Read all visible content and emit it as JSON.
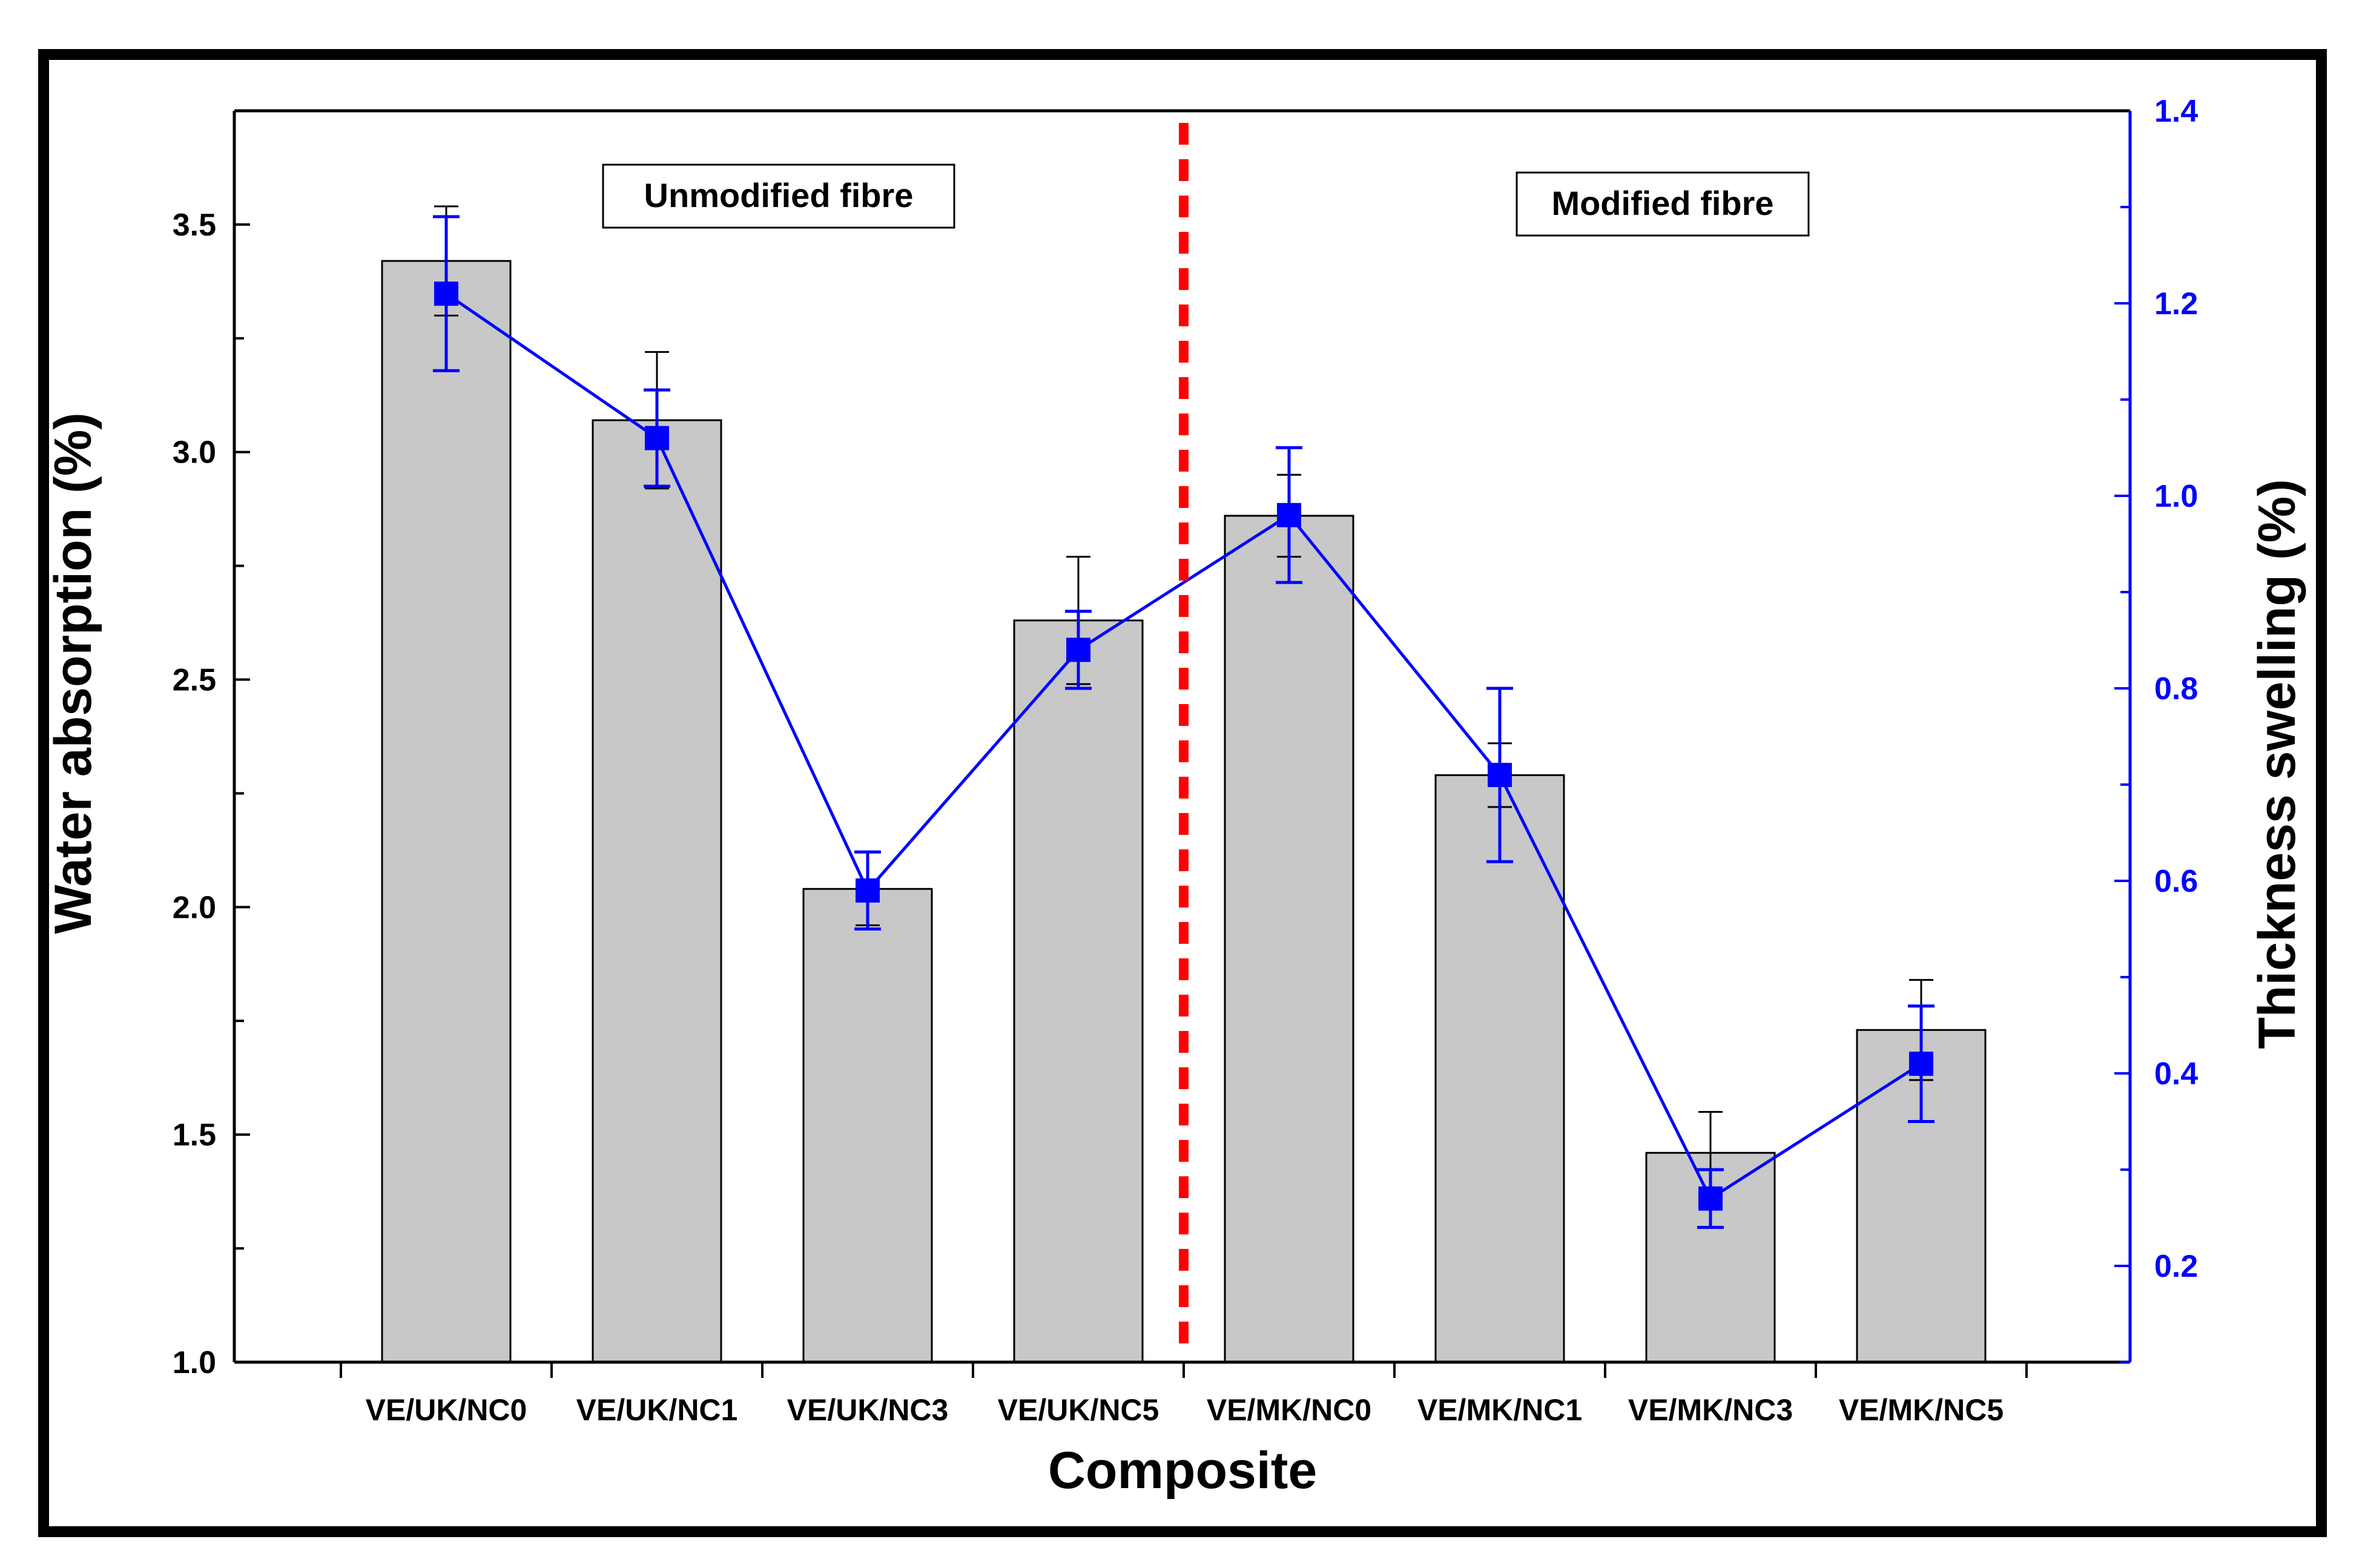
{
  "chart_data": {
    "type": "bar",
    "xlabel": "Composite",
    "ylabel": "Water absorption (%)",
    "y2label": "Thickness swelling (%)",
    "categories": [
      "VE/UK/NC0",
      "VE/UK/NC1",
      "VE/UK/NC3",
      "VE/UK/NC5",
      "VE/MK/NC0",
      "VE/MK/NC1",
      "VE/MK/NC3",
      "VE/MK/NC5"
    ],
    "ylim": [
      1.0,
      3.75
    ],
    "yticks": [
      "1.0",
      "1.5",
      "2.0",
      "2.5",
      "3.0",
      "3.5"
    ],
    "y2lim": [
      0.1,
      1.4
    ],
    "y2ticks": [
      "0.2",
      "0.4",
      "0.6",
      "0.8",
      "1.0",
      "1.2",
      "1.4"
    ],
    "series": [
      {
        "name": "Water absorption",
        "type": "bar",
        "axis": "left",
        "color": "#c8c8c8",
        "values": [
          3.42,
          3.07,
          2.04,
          2.63,
          2.86,
          2.29,
          1.46,
          1.73
        ],
        "errors": [
          0.12,
          0.15,
          0.08,
          0.14,
          0.09,
          0.07,
          0.09,
          0.11
        ]
      },
      {
        "name": "Thickness swelling",
        "type": "line",
        "axis": "right",
        "color": "#0000ff",
        "values": [
          1.21,
          1.06,
          0.59,
          0.84,
          0.98,
          0.71,
          0.27,
          0.41
        ],
        "errors": [
          0.08,
          0.05,
          0.04,
          0.04,
          0.07,
          0.09,
          0.03,
          0.06
        ]
      }
    ],
    "annotations": {
      "left_region": "Unmodified fibre",
      "right_region": "Modified fibre"
    },
    "divider_color": "#ff0000"
  }
}
